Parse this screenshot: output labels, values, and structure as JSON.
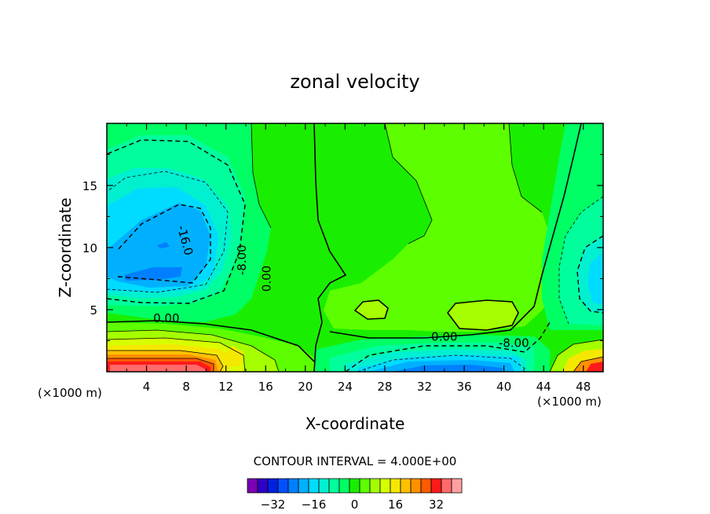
{
  "chart_data": {
    "type": "heatmap",
    "title": "zonal velocity",
    "xlabel": "X-coordinate",
    "ylabel": "Z-coordinate",
    "x_unit": "(×1000 m)",
    "x_unit_right": "(×1000 m)",
    "xlim": [
      0,
      50
    ],
    "ylim": [
      0,
      20
    ],
    "x_ticks": [
      4,
      8,
      12,
      16,
      20,
      24,
      28,
      32,
      36,
      40,
      44,
      48
    ],
    "x_tick_labels": [
      "4",
      "8",
      "12",
      "16",
      "20",
      "24",
      "28",
      "32",
      "36",
      "40",
      "44",
      "48"
    ],
    "y_ticks": [
      5,
      10,
      15
    ],
    "y_tick_labels": [
      "5",
      "10",
      "15"
    ],
    "contour_interval_text": "CONTOUR INTERVAL = 4.000E+00",
    "contour_interval": 4,
    "contour_labels": [
      {
        "text": "-16.0",
        "x": 7.5,
        "y": 10.5
      },
      {
        "text": "-8.00",
        "x": 14.0,
        "y": 9.0
      },
      {
        "text": "0.00",
        "x": 16.5,
        "y": 7.5
      },
      {
        "text": "0.00",
        "x": 6.0,
        "y": 4.0
      },
      {
        "text": "0.00",
        "x": 34.0,
        "y": 2.5
      },
      {
        "text": "-8.00",
        "x": 41.0,
        "y": 2.0
      }
    ],
    "colorbar": {
      "levels": [
        -40,
        -36,
        -32,
        -28,
        -24,
        -20,
        -16,
        -12,
        -8,
        -4,
        0,
        4,
        8,
        12,
        16,
        20,
        24,
        28,
        32,
        36,
        40
      ],
      "tick_values": [
        -32,
        -16,
        0,
        16,
        32
      ],
      "tick_labels": [
        "−32",
        "−16",
        "0",
        "16",
        "32"
      ],
      "colors": [
        "#7a00b4",
        "#2e00c8",
        "#0020e0",
        "#0050ff",
        "#0080ff",
        "#00b0ff",
        "#00dcff",
        "#00f0d0",
        "#00ff9c",
        "#00ff64",
        "#1aee00",
        "#5dff00",
        "#a6ff00",
        "#d8ff00",
        "#f5e800",
        "#ffc000",
        "#ff9000",
        "#ff5a00",
        "#ff1a1a",
        "#ff6a6a",
        "#ffa0a0"
      ]
    }
  }
}
